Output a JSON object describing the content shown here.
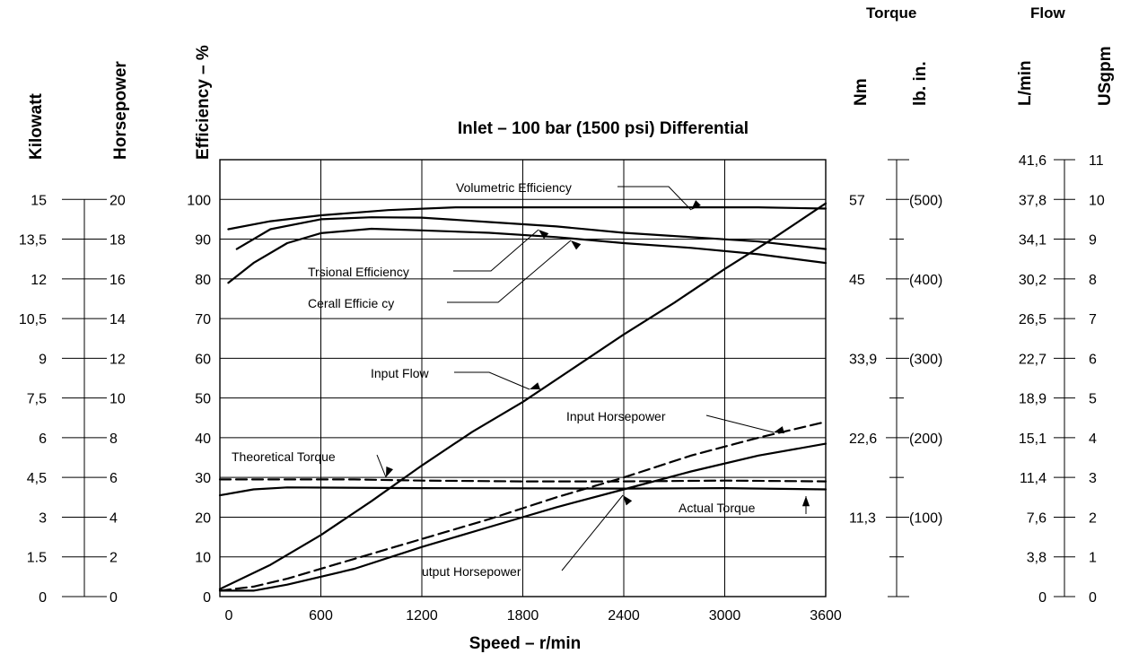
{
  "chart_data": {
    "type": "line",
    "title": "Inlet – 100 bar (1500 psi) Differential",
    "xlabel": "Speed – r/min",
    "ylabel": "Efficiency – %",
    "xlim": [
      0,
      3600
    ],
    "ylim": [
      0,
      110
    ],
    "x_ticks": [
      "0",
      "600",
      "1200",
      "1800",
      "2400",
      "3000",
      "3600"
    ],
    "y_ticks": [
      "0",
      "10",
      "20",
      "30",
      "40",
      "50",
      "60",
      "70",
      "80",
      "90",
      "100"
    ],
    "grid": true,
    "series": [
      {
        "name": "Volumetric Efficiency",
        "x": [
          50,
          300,
          600,
          1000,
          1400,
          2000,
          2600,
          3200,
          3600
        ],
        "y": [
          92.5,
          94.5,
          96,
          97.3,
          98,
          98,
          98,
          98,
          97.7
        ]
      },
      {
        "name": "Trsional Efficiency",
        "x": [
          100,
          300,
          600,
          900,
          1200,
          1600,
          2000,
          2400,
          2800,
          3200,
          3600
        ],
        "y": [
          87.5,
          92.5,
          95,
          95.5,
          95.4,
          94.3,
          93.2,
          91.6,
          90.5,
          89.4,
          87.5
        ]
      },
      {
        "name": "Cerall Efficie cy",
        "x": [
          50,
          200,
          400,
          600,
          900,
          1200,
          1600,
          2000,
          2400,
          2800,
          3200,
          3600
        ],
        "y": [
          79,
          84,
          89,
          91.5,
          92.6,
          92.2,
          91.6,
          90.5,
          89,
          87.8,
          86.2,
          84
        ]
      },
      {
        "name": "Input Flow",
        "x": [
          0,
          300,
          600,
          900,
          1200,
          1500,
          1800,
          2100,
          2400,
          2700,
          3000,
          3300,
          3600
        ],
        "y": [
          1.9,
          8,
          15.5,
          24,
          33,
          41.5,
          49,
          57.5,
          66,
          74,
          82.5,
          90.5,
          99
        ]
      },
      {
        "name": "Input Horsepower",
        "x": [
          0,
          200,
          400,
          800,
          1200,
          1600,
          2000,
          2400,
          2800,
          3200,
          3600
        ],
        "y": [
          1.5,
          2.5,
          4.5,
          9.5,
          14.5,
          19.5,
          25,
          30,
          35.5,
          40,
          44
        ]
      },
      {
        "name": "utput Horsepower",
        "x": [
          0,
          200,
          400,
          800,
          1200,
          1600,
          2000,
          2400,
          2800,
          3200,
          3600
        ],
        "y": [
          1.5,
          1.5,
          3,
          7,
          12.5,
          17.5,
          22.5,
          27,
          31.5,
          35.5,
          38.5
        ]
      },
      {
        "name": "Theoretical Torque",
        "x": [
          0,
          800,
          1200,
          1800,
          2400,
          3000,
          3600
        ],
        "y": [
          29.5,
          29.5,
          29.2,
          29,
          29,
          29.2,
          29
        ]
      },
      {
        "name": "Actual Torque",
        "x": [
          0,
          200,
          400,
          1200,
          2400,
          3000,
          3600
        ],
        "y": [
          25.5,
          27,
          27.5,
          27.3,
          27.2,
          27.3,
          27
        ]
      }
    ],
    "secondary_scales": [
      {
        "title": "Kilowatt",
        "ticks": [
          "0",
          "1.5",
          "3",
          "4,5",
          "6",
          "7,5",
          "9",
          "10,5",
          "12",
          "13,5",
          "15"
        ]
      },
      {
        "title": "Horsepower",
        "ticks": [
          "0",
          "2",
          "4",
          "6",
          "8",
          "10",
          "12",
          "14",
          "16",
          "18",
          "20"
        ]
      },
      {
        "title": "Nm",
        "ticks": [
          "11,3",
          "22,6",
          "33,9",
          "45",
          "57"
        ]
      },
      {
        "title": "lb. in.",
        "ticks": [
          "(100)",
          "(200)",
          "(300)",
          "(400)",
          "(500)"
        ]
      },
      {
        "title": "L/min",
        "ticks": [
          "0",
          "3,8",
          "7,6",
          "11,4",
          "15,1",
          "18,9",
          "22,7",
          "26,5",
          "30,2",
          "34,1",
          "37,8",
          "41,6"
        ]
      },
      {
        "title": "USgpm",
        "ticks": [
          "0",
          "1",
          "2",
          "3",
          "4",
          "5",
          "6",
          "7",
          "8",
          "9",
          "10",
          "11"
        ]
      }
    ],
    "group_headers": {
      "torque": "Torque",
      "flow": "Flow"
    }
  }
}
